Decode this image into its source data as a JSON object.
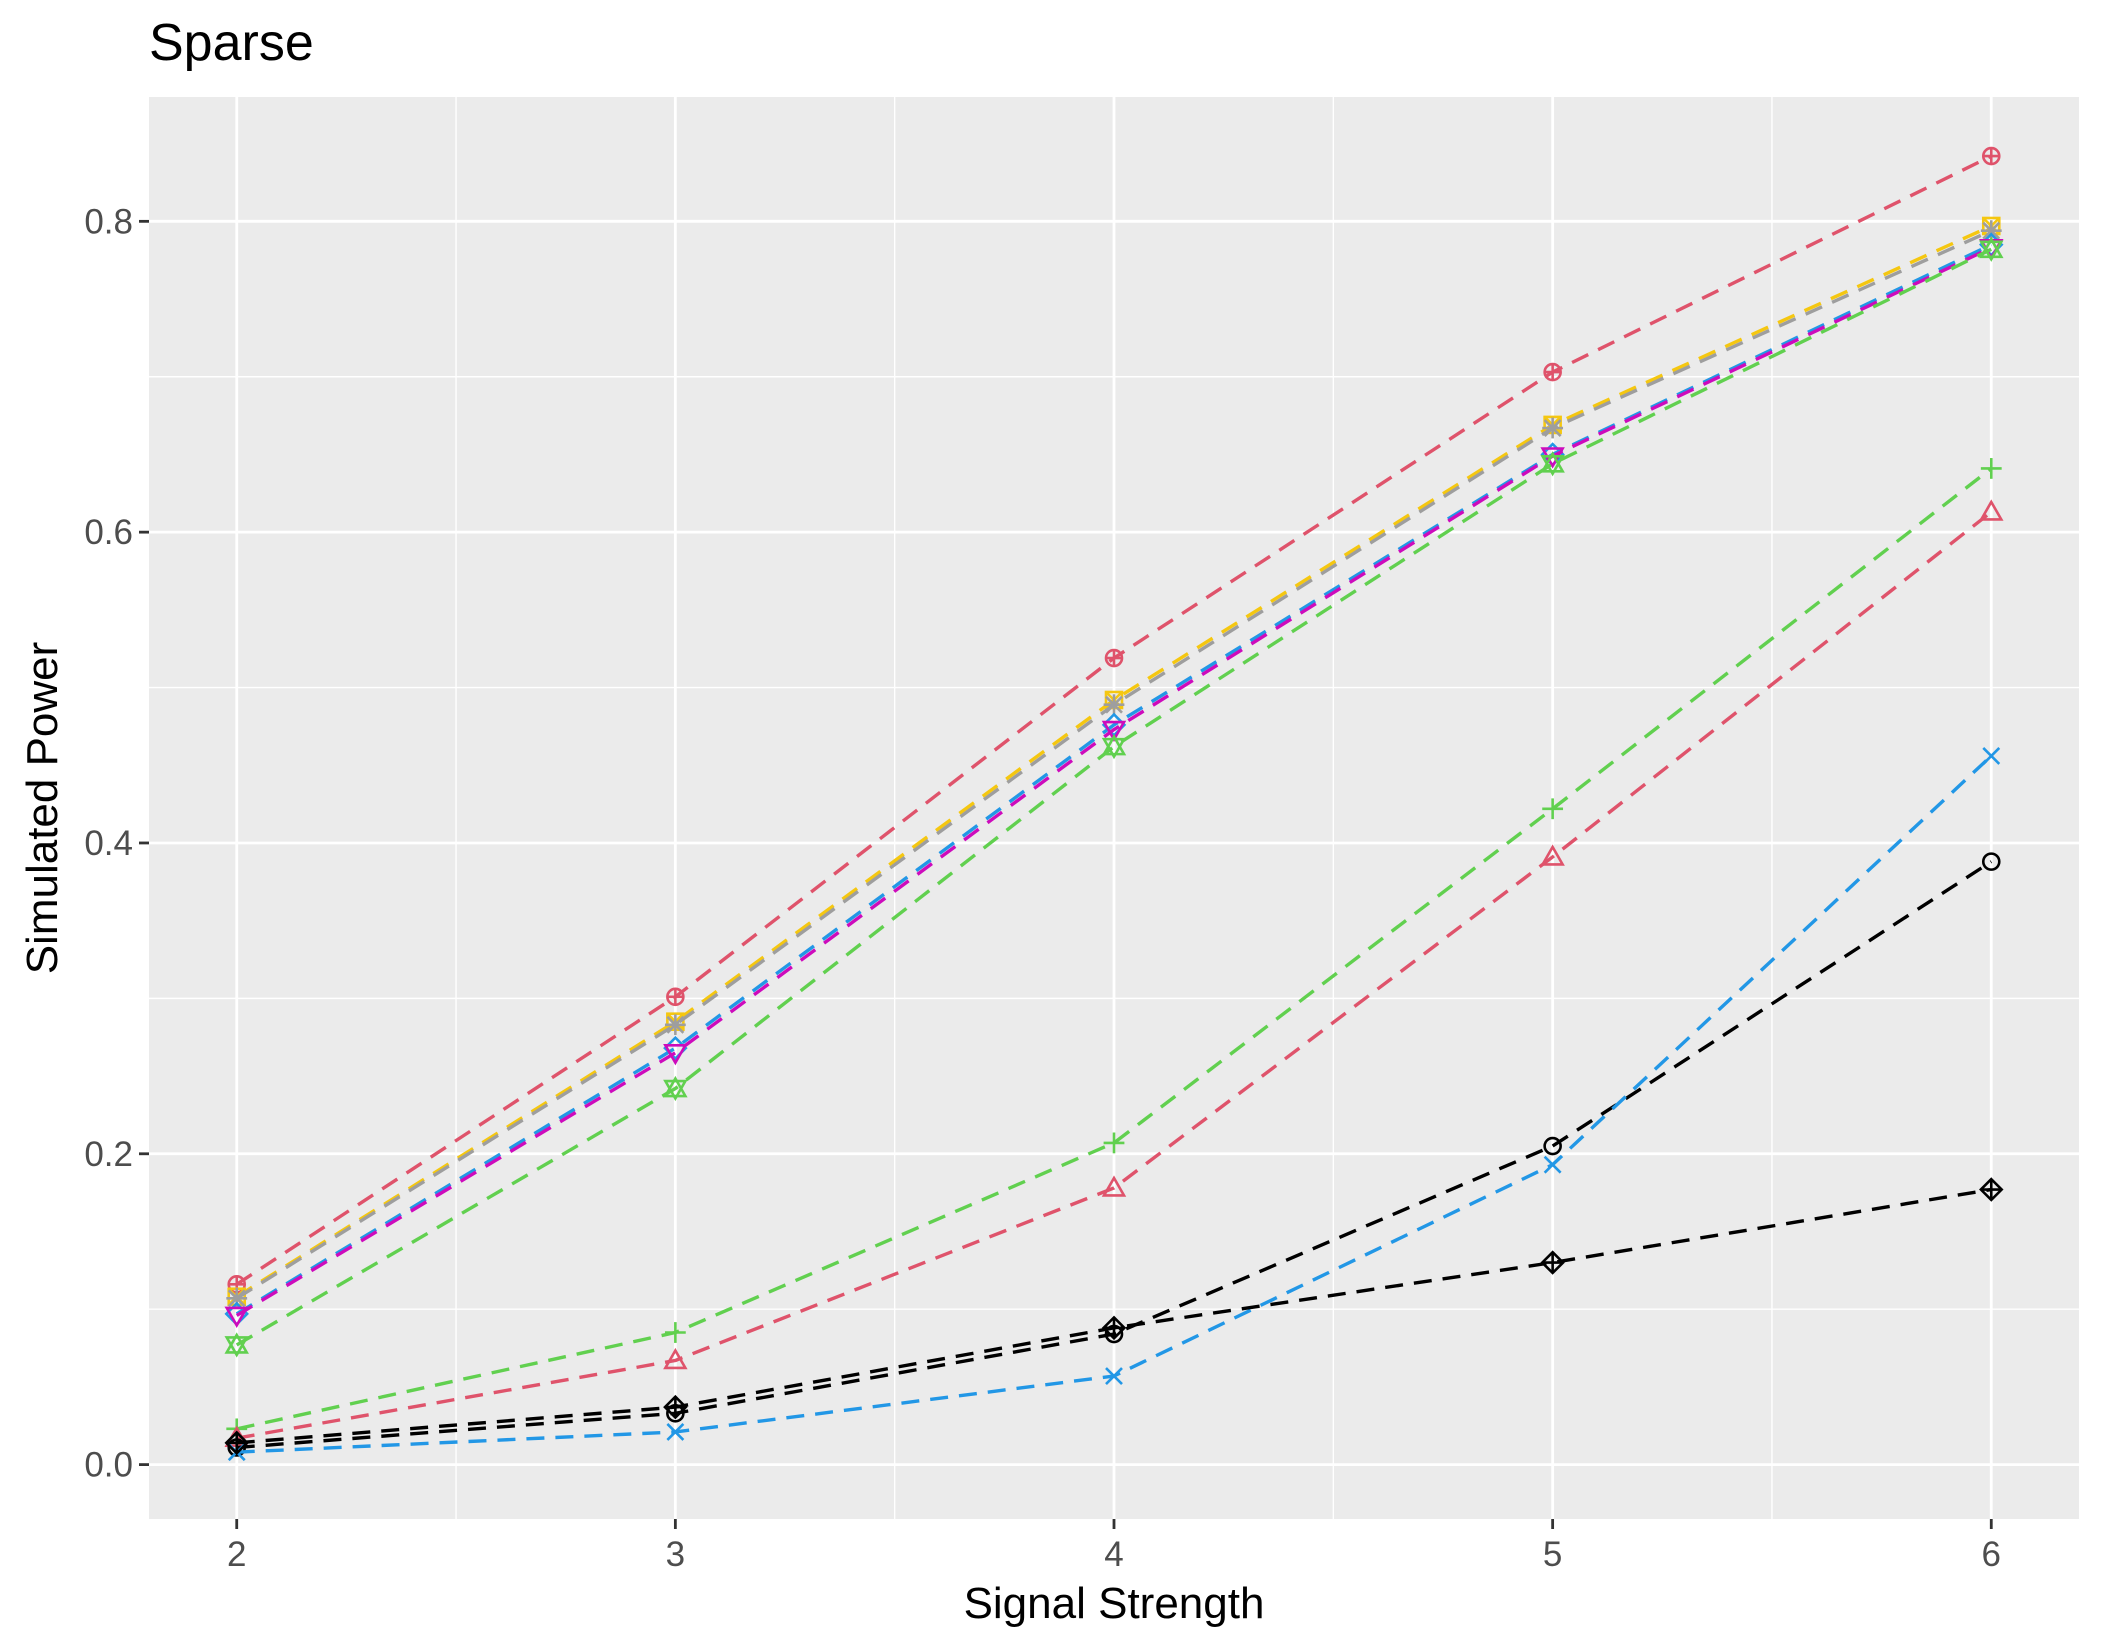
{
  "chart_data": {
    "type": "line",
    "title": "Sparse",
    "xlabel": "Signal Strength",
    "ylabel": "Simulated Power",
    "x": [
      2,
      3,
      4,
      5,
      6
    ],
    "xlim": [
      1.8,
      6.2
    ],
    "ylim": [
      -0.035,
      0.88
    ],
    "xticks": [
      2,
      3,
      4,
      5,
      6
    ],
    "yticks": [
      0.0,
      0.2,
      0.4,
      0.6,
      0.8
    ],
    "xtick_labels": [
      "2",
      "3",
      "4",
      "5",
      "6"
    ],
    "ytick_labels": [
      "0.0",
      "0.2",
      "0.4",
      "0.6",
      "0.8"
    ],
    "xminor": [
      2.5,
      3.5,
      4.5,
      5.5
    ],
    "yminor": [
      0.1,
      0.3,
      0.5,
      0.7
    ],
    "grid": true,
    "legend": "none",
    "background": "#EBEBEB",
    "series": [
      {
        "name": "circle-plus-red",
        "color": "#DF536B",
        "marker": "circle-plus",
        "values": [
          0.116,
          0.301,
          0.519,
          0.703,
          0.842
        ]
      },
      {
        "name": "square-cross-yellow",
        "color": "#F5C710",
        "marker": "square-cross",
        "values": [
          0.108,
          0.285,
          0.492,
          0.669,
          0.797
        ]
      },
      {
        "name": "asterisk-gray",
        "color": "#9E9E9E",
        "marker": "asterisk",
        "values": [
          0.107,
          0.283,
          0.489,
          0.667,
          0.794
        ]
      },
      {
        "name": "diamond-blue",
        "color": "#2297E6",
        "marker": "diamond",
        "values": [
          0.097,
          0.268,
          0.476,
          0.65,
          0.785
        ]
      },
      {
        "name": "triangle-down-magenta",
        "color": "#CD0BBC",
        "marker": "triangle-down",
        "values": [
          0.096,
          0.265,
          0.473,
          0.649,
          0.783
        ]
      },
      {
        "name": "star-of-david-green",
        "color": "#61D04F",
        "marker": "triangles-updown",
        "values": [
          0.077,
          0.242,
          0.462,
          0.644,
          0.782
        ]
      },
      {
        "name": "plus-green",
        "color": "#61D04F",
        "marker": "plus",
        "values": [
          0.023,
          0.085,
          0.207,
          0.422,
          0.641
        ]
      },
      {
        "name": "triangle-up-red",
        "color": "#DF536B",
        "marker": "triangle-up",
        "values": [
          0.017,
          0.067,
          0.178,
          0.391,
          0.613
        ]
      },
      {
        "name": "circle-black",
        "color": "#000000",
        "marker": "circle",
        "values": [
          0.011,
          0.033,
          0.084,
          0.205,
          0.388
        ]
      },
      {
        "name": "cross-blue",
        "color": "#2297E6",
        "marker": "cross",
        "values": [
          0.008,
          0.021,
          0.057,
          0.193,
          0.456
        ]
      },
      {
        "name": "diamond-plus-black",
        "color": "#000000",
        "marker": "diamond-plus",
        "values": [
          0.014,
          0.037,
          0.088,
          0.13,
          0.177
        ]
      }
    ]
  }
}
